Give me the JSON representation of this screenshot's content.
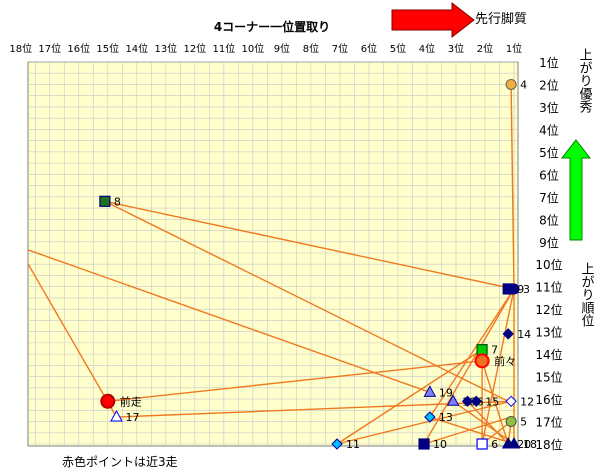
{
  "chart_data": {
    "type": "scatter",
    "title": "4コーナー一位置取り",
    "xlabel": "",
    "ylabel": "",
    "x_axis_reversed": true,
    "y_axis_reversed": true,
    "xlim": [
      1,
      18
    ],
    "ylim": [
      1,
      18
    ],
    "grid": true,
    "x_tick_labels": [
      "18位",
      "17位",
      "16位",
      "15位",
      "14位",
      "13位",
      "12位",
      "11位",
      "10位",
      "9位",
      "8位",
      "7位",
      "6位",
      "5位",
      "4位",
      "3位",
      "2位",
      "1位"
    ],
    "y_tick_labels": [
      "1位",
      "2位",
      "3位",
      "4位",
      "5位",
      "6位",
      "7位",
      "8位",
      "9位",
      "10位",
      "11位",
      "12位",
      "13位",
      "14位",
      "15位",
      "16位",
      "17位",
      "18位"
    ],
    "colors": {
      "plot_bg": "#ffffcc",
      "grid": "#c8c8c8",
      "line": "#f07820",
      "red_arrow": "#ff0000",
      "green_arrow": "#00ff00"
    },
    "annotations": {
      "right_arrow_label": "先行脚質",
      "up_arrow_label": "上がり優秀",
      "right_axis_label": "上がり順位",
      "footnote": "赤色ポイントは近3走"
    },
    "points": [
      {
        "label": "4",
        "x": 1.1,
        "y": 2,
        "marker": "circle",
        "fill": "#f0b040",
        "stroke": "#606060"
      },
      {
        "label": "8",
        "x": 15.1,
        "y": 7.2,
        "marker": "square",
        "fill": "#207020",
        "stroke": "#000080"
      },
      {
        "label": "3",
        "x": 1.0,
        "y": 11.1,
        "marker": "circle",
        "fill": "#000080",
        "stroke": "#000080"
      },
      {
        "label": "9",
        "x": 1.2,
        "y": 11.1,
        "marker": "square",
        "fill": "#000080",
        "stroke": "#000080"
      },
      {
        "label": "14",
        "x": 1.2,
        "y": 13.1,
        "marker": "diamond",
        "fill": "#000080",
        "stroke": "#000080"
      },
      {
        "label": "7",
        "x": 2.1,
        "y": 13.8,
        "marker": "square",
        "fill": "#00cc00",
        "stroke": "#005000"
      },
      {
        "label": "前々",
        "x": 2.1,
        "y": 14.3,
        "marker": "circle-red",
        "fill": "#f07020",
        "stroke": "#ff0000"
      },
      {
        "label": "19",
        "x": 3.9,
        "y": 15.7,
        "marker": "triangle",
        "fill": "#8080ff",
        "stroke": "#000080"
      },
      {
        "label": "前走",
        "x": 15.0,
        "y": 16.1,
        "marker": "circle-red",
        "fill": "#ff0000",
        "stroke": "#b00000"
      },
      {
        "label": "16",
        "x": 3.1,
        "y": 16.1,
        "marker": "triangle",
        "fill": "#8080ff",
        "stroke": "#000080"
      },
      {
        "label": "6",
        "x": 2.6,
        "y": 16.1,
        "marker": "diamond",
        "fill": "#000080",
        "stroke": "#000080"
      },
      {
        "label": "15",
        "x": 2.3,
        "y": 16.1,
        "marker": "diamond",
        "fill": "#000080",
        "stroke": "#000080"
      },
      {
        "label": "12",
        "x": 1.1,
        "y": 16.1,
        "marker": "diamond-open",
        "fill": "#ffffff",
        "stroke": "#0000ff"
      },
      {
        "label": "17",
        "x": 14.7,
        "y": 16.8,
        "marker": "triangle-open",
        "fill": "#ffffff",
        "stroke": "#0000ff"
      },
      {
        "label": "13",
        "x": 3.9,
        "y": 16.8,
        "marker": "diamond",
        "fill": "#00c0ff",
        "stroke": "#0000a0"
      },
      {
        "label": "5",
        "x": 1.1,
        "y": 17.0,
        "marker": "circle",
        "fill": "#90c040",
        "stroke": "#505050"
      },
      {
        "label": "11",
        "x": 7.1,
        "y": 18,
        "marker": "diamond",
        "fill": "#00c0ff",
        "stroke": "#0000a0"
      },
      {
        "label": "10",
        "x": 4.1,
        "y": 18,
        "marker": "square",
        "fill": "#000080",
        "stroke": "#000080"
      },
      {
        "label": "6",
        "x": 2.1,
        "y": 18,
        "marker": "square-open",
        "fill": "#ffffff",
        "stroke": "#0000ff"
      },
      {
        "label": "20",
        "x": 1.2,
        "y": 18,
        "marker": "triangle",
        "fill": "#000080",
        "stroke": "#000080"
      },
      {
        "label": "18",
        "x": 1.0,
        "y": 18,
        "marker": "triangle",
        "fill": "#000080",
        "stroke": "#000080"
      }
    ],
    "lines": [
      [
        [
          1.1,
          2
        ],
        [
          1.0,
          11.1
        ]
      ],
      [
        [
          15.1,
          7.2
        ],
        [
          1.0,
          11.1
        ]
      ],
      [
        [
          15.1,
          7.2
        ],
        [
          1.2,
          16.1
        ]
      ],
      [
        [
          18.1,
          9.2
        ],
        [
          14.7,
          16.8
        ]
      ],
      [
        [
          18.1,
          9.2
        ],
        [
          3.9,
          15.7
        ]
      ],
      [
        [
          15.0,
          16.1
        ],
        [
          2.1,
          14.3
        ]
      ],
      [
        [
          14.7,
          16.8
        ],
        [
          1.1,
          16.1
        ]
      ],
      [
        [
          1.0,
          11.1
        ],
        [
          3.9,
          16.8
        ]
      ],
      [
        [
          1.0,
          11.1
        ],
        [
          4.1,
          18
        ]
      ],
      [
        [
          1.0,
          11.1
        ],
        [
          2.1,
          18
        ]
      ],
      [
        [
          1.0,
          11.1
        ],
        [
          1.0,
          18
        ]
      ],
      [
        [
          2.1,
          13.8
        ],
        [
          7.1,
          18
        ]
      ],
      [
        [
          2.1,
          13.8
        ],
        [
          2.1,
          18
        ]
      ],
      [
        [
          2.1,
          14.3
        ],
        [
          1.2,
          18
        ]
      ],
      [
        [
          3.1,
          16.1
        ],
        [
          1.0,
          18
        ]
      ],
      [
        [
          2.6,
          16.1
        ],
        [
          1.2,
          18
        ]
      ],
      [
        [
          1.1,
          16.1
        ],
        [
          7.1,
          18
        ]
      ],
      [
        [
          1.1,
          16.8
        ],
        [
          4.1,
          18
        ]
      ],
      [
        [
          3.9,
          16.8
        ],
        [
          1.0,
          18
        ]
      ],
      [
        [
          1.1,
          17.0
        ],
        [
          1.2,
          18
        ]
      ],
      [
        [
          1.1,
          17.0
        ],
        [
          2.1,
          18
        ]
      ]
    ]
  }
}
